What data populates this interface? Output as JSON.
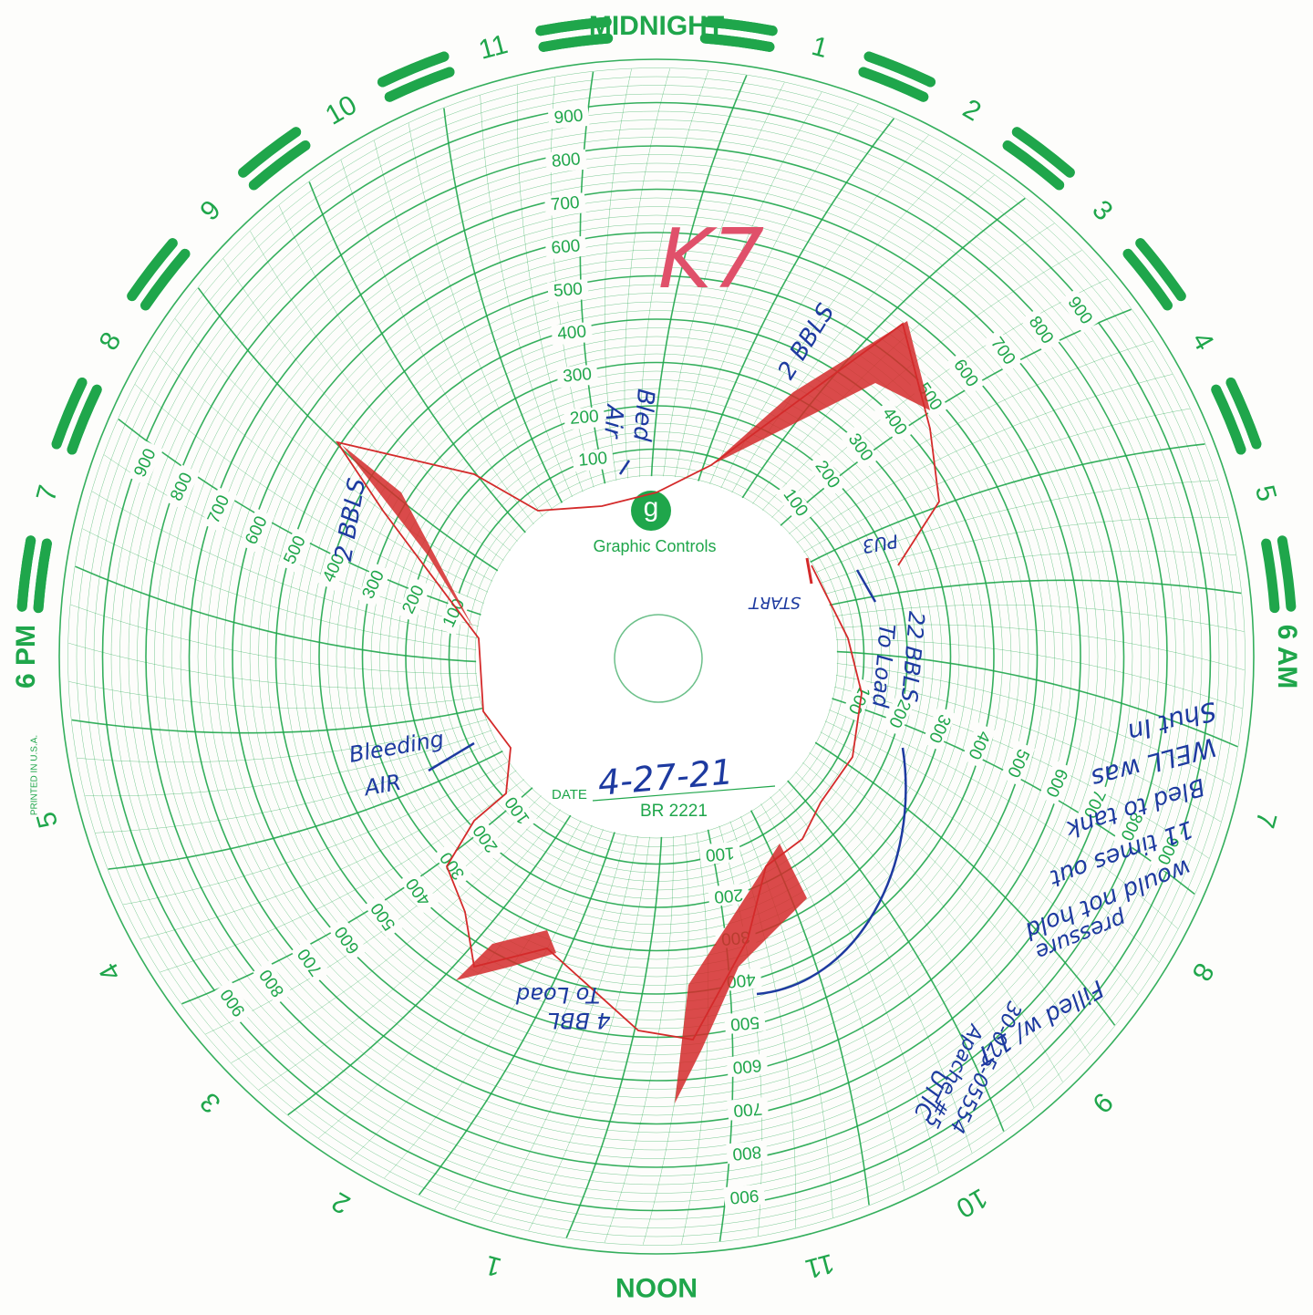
{
  "rim_hours": [
    "MIDNIGHT",
    "1",
    "2",
    "3",
    "4",
    "5",
    "6 AM",
    "7",
    "8",
    "9",
    "10",
    "11",
    "NOON",
    "1",
    "2",
    "3",
    "4",
    "5",
    "6 PM",
    "7",
    "8",
    "9",
    "10",
    "11"
  ],
  "scale_labels": [
    "100",
    "200",
    "300",
    "400",
    "500",
    "600",
    "700",
    "800",
    "900"
  ],
  "hub": {
    "logo": "g",
    "brand": "Graphic Controls",
    "date_label": "DATE",
    "chart_number": "BR 2221"
  },
  "printed_note": "PRINTED IN U.S.A.",
  "handwriting": {
    "chart_id": "K7",
    "date": "4-27-21",
    "notes": [
      "Bled",
      "Air",
      "2 BBLS",
      "2 BBLS",
      "PU3",
      "START",
      "22 BBLS",
      "To Load",
      "Bleeding",
      "AIR",
      "4 BBL",
      "To Load",
      "Shut In",
      "WELL was",
      "Bled to tank",
      "11 times out",
      "would not hold",
      "pressure",
      "Filled w/ 1 T",
      "UTIC",
      "Apache #5",
      "30-025-05554"
    ]
  }
}
